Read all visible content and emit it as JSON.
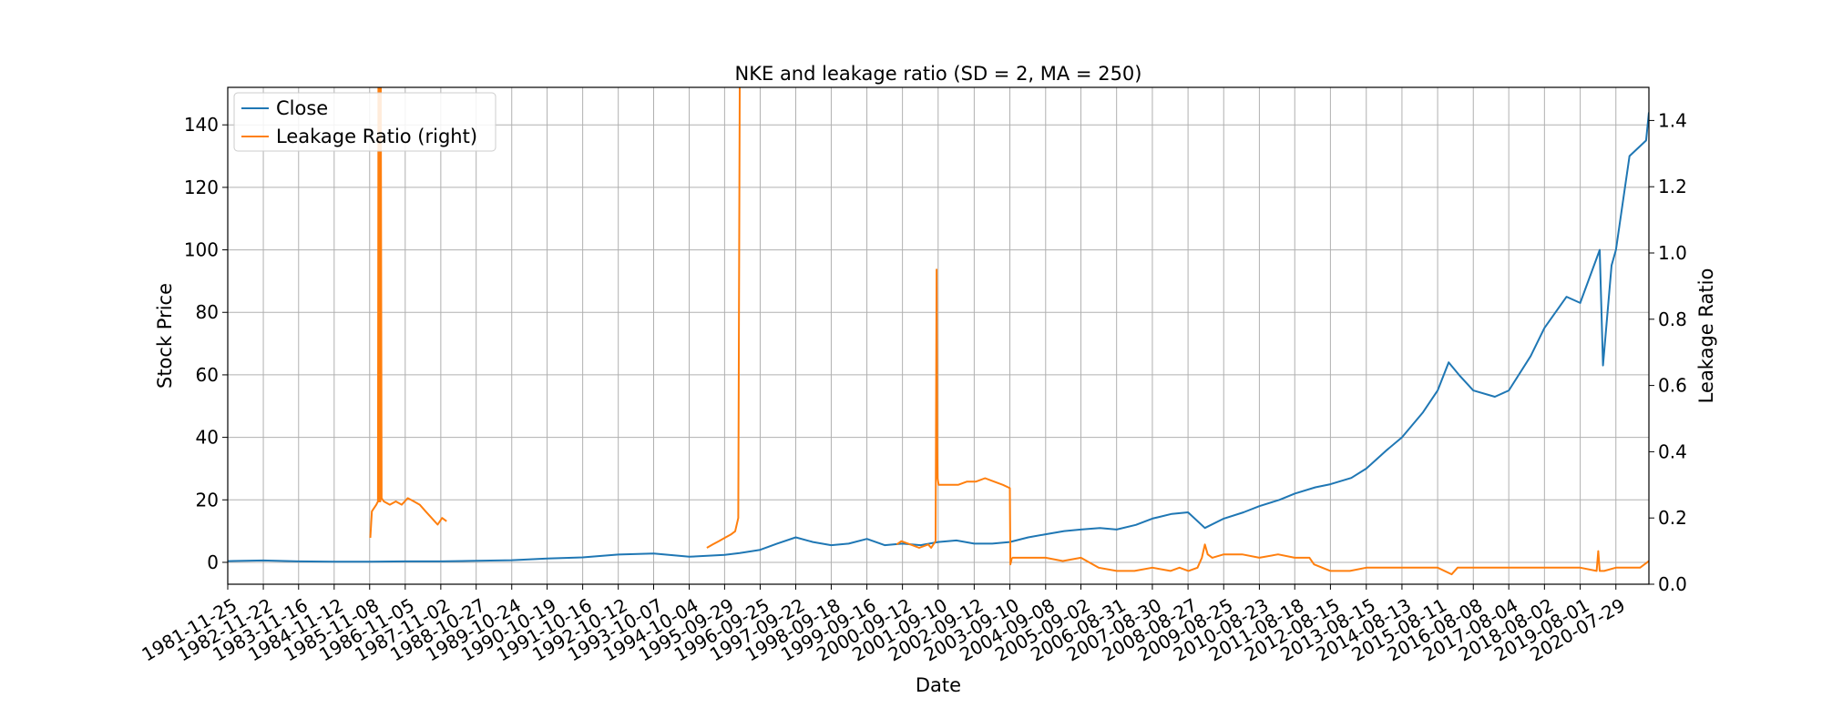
{
  "chart_data": {
    "type": "line",
    "title": "NKE and leakage ratio (SD = 2, MA = 250)",
    "xlabel": "Date",
    "ylabel": "Stock Price",
    "y2label": "Leakage Ratio",
    "xlim": [
      "1981-11-25",
      "2021-06-30"
    ],
    "ylim": [
      -7,
      152
    ],
    "y2lim": [
      0.0,
      1.5
    ],
    "grid": true,
    "legend_position": "top-left",
    "x_tick_labels": [
      "1981-11-25",
      "1982-11-22",
      "1983-11-16",
      "1984-11-12",
      "1985-11-08",
      "1986-11-05",
      "1987-11-02",
      "1988-10-27",
      "1989-10-24",
      "1990-10-19",
      "1991-10-16",
      "1992-10-12",
      "1993-10-07",
      "1994-10-04",
      "1995-09-29",
      "1996-09-25",
      "1997-09-22",
      "1998-09-18",
      "1999-09-16",
      "2000-09-12",
      "2001-09-10",
      "2002-09-12",
      "2003-09-10",
      "2004-09-08",
      "2005-09-02",
      "2006-08-31",
      "2007-08-30",
      "2008-08-27",
      "2009-08-25",
      "2010-08-23",
      "2011-08-18",
      "2012-08-15",
      "2013-08-15",
      "2014-08-13",
      "2015-08-11",
      "2016-08-08",
      "2017-08-04",
      "2018-08-02",
      "2019-08-01",
      "2020-07-29"
    ],
    "y_ticks": [
      0,
      20,
      40,
      60,
      80,
      100,
      120,
      140
    ],
    "y2_ticks": [
      "0.0",
      "0.2",
      "0.4",
      "0.6",
      "0.8",
      "1.0",
      "1.2",
      "1.4"
    ],
    "series": [
      {
        "name": "Close",
        "axis": "left",
        "color": "#1f77b4",
        "x": [
          "1981-11-25",
          "1982-11-22",
          "1983-11-16",
          "1984-11-12",
          "1985-11-08",
          "1986-11-05",
          "1987-11-02",
          "1988-10-27",
          "1989-10-24",
          "1990-10-19",
          "1991-10-16",
          "1992-10-12",
          "1993-10-07",
          "1994-10-04",
          "1995-09-29",
          "1996-03-01",
          "1996-09-25",
          "1997-03-15",
          "1997-09-22",
          "1998-03-15",
          "1998-09-18",
          "1999-03-15",
          "1999-09-16",
          "2000-03-15",
          "2000-09-12",
          "2001-03-15",
          "2001-09-10",
          "2002-03-15",
          "2002-09-12",
          "2003-03-15",
          "2003-09-10",
          "2004-03-15",
          "2004-09-08",
          "2005-03-15",
          "2005-09-02",
          "2006-03-15",
          "2006-08-31",
          "2007-03-15",
          "2007-08-30",
          "2008-03-15",
          "2008-08-27",
          "2009-02-15",
          "2009-08-25",
          "2010-03-15",
          "2010-08-23",
          "2011-03-15",
          "2011-08-18",
          "2012-03-15",
          "2012-08-15",
          "2013-03-15",
          "2013-08-15",
          "2014-03-15",
          "2014-08-13",
          "2015-03-15",
          "2015-08-11",
          "2015-12-01",
          "2016-03-15",
          "2016-08-08",
          "2017-03-15",
          "2017-08-04",
          "2018-03-15",
          "2018-08-02",
          "2019-03-15",
          "2019-08-01",
          "2020-02-15",
          "2020-03-20",
          "2020-06-15",
          "2020-07-29",
          "2020-12-15",
          "2021-06-01",
          "2021-06-30"
        ],
        "values": [
          0.4,
          0.6,
          0.3,
          0.2,
          0.2,
          0.3,
          0.3,
          0.5,
          0.7,
          1.2,
          1.6,
          2.5,
          2.8,
          1.8,
          2.4,
          3.0,
          4.0,
          6.0,
          8.0,
          6.5,
          5.5,
          6.0,
          7.5,
          5.5,
          6.0,
          5.5,
          6.5,
          7.0,
          6.0,
          6.0,
          6.5,
          8.0,
          9.0,
          10.0,
          10.5,
          11.0,
          10.5,
          12.0,
          14.0,
          15.5,
          16.0,
          11.0,
          14.0,
          16.0,
          18.0,
          20.0,
          22.0,
          24.0,
          25.0,
          27.0,
          30.0,
          36.0,
          40.0,
          48.0,
          55.0,
          64.0,
          60.0,
          55.0,
          53.0,
          55.0,
          66.0,
          75.0,
          85.0,
          83.0,
          100.0,
          63.0,
          95.0,
          100.0,
          130.0,
          135.0,
          144.0
        ]
      },
      {
        "name": "Leakage Ratio (right)",
        "axis": "right",
        "color": "#ff7f0e",
        "segments": [
          {
            "x": [
              "1985-11-15",
              "1985-12-01",
              "1986-01-15",
              "1986-02-01",
              "1986-02-05",
              "1986-02-08",
              "1986-02-12",
              "1986-02-15",
              "1986-02-20",
              "1986-02-25",
              "1986-03-01",
              "1986-03-10",
              "1986-04-01",
              "1986-06-01",
              "1986-08-01",
              "1986-10-01",
              "1986-12-01",
              "1987-02-01",
              "1987-04-01",
              "1987-06-01",
              "1987-08-01",
              "1987-10-01",
              "1987-11-15",
              "1987-12-31"
            ],
            "values": [
              0.14,
              0.22,
              0.24,
              0.25,
              1.5,
              0.25,
              1.5,
              0.25,
              1.5,
              0.25,
              1.5,
              0.26,
              0.25,
              0.24,
              0.25,
              0.24,
              0.26,
              0.25,
              0.24,
              0.22,
              0.2,
              0.18,
              0.2,
              0.19
            ]
          },
          {
            "x": [
              "1995-04-01",
              "1995-06-01",
              "1995-08-01",
              "1995-10-01",
              "1995-12-01",
              "1996-01-15",
              "1996-02-15",
              "1996-03-01",
              "1996-03-05"
            ],
            "values": [
              0.11,
              0.12,
              0.13,
              0.14,
              0.15,
              0.16,
              0.2,
              1.5,
              1.5
            ]
          },
          {
            "x": [
              "2000-07-15",
              "2000-09-01",
              "2000-12-01",
              "2001-03-01",
              "2001-06-01",
              "2001-07-01",
              "2001-08-15",
              "2001-08-25",
              "2001-09-01",
              "2001-09-05",
              "2001-09-15",
              "2001-10-01",
              "2002-01-01",
              "2002-04-01",
              "2002-07-01",
              "2002-10-01",
              "2003-01-01",
              "2003-04-01",
              "2003-07-01",
              "2003-09-10",
              "2003-09-15",
              "2003-10-01"
            ],
            "values": [
              0.12,
              0.13,
              0.12,
              0.11,
              0.12,
              0.11,
              0.13,
              0.95,
              0.42,
              0.32,
              0.3,
              0.3,
              0.3,
              0.3,
              0.31,
              0.31,
              0.32,
              0.31,
              0.3,
              0.29,
              0.06,
              0.08
            ]
          },
          {
            "x": [
              "2003-10-01",
              "2004-03-01",
              "2004-09-08",
              "2005-03-01",
              "2005-09-02",
              "2006-03-01",
              "2006-08-31",
              "2007-03-01",
              "2007-08-30",
              "2008-03-01",
              "2008-06-01",
              "2008-09-01",
              "2008-12-01",
              "2009-01-15",
              "2009-02-15",
              "2009-03-15",
              "2009-05-01",
              "2009-08-25",
              "2010-03-01",
              "2010-08-23",
              "2011-03-01",
              "2011-08-18",
              "2012-01-15",
              "2012-03-01",
              "2012-08-15",
              "2013-03-01",
              "2013-08-15",
              "2014-03-01",
              "2014-08-13",
              "2015-03-01",
              "2015-08-11",
              "2016-01-01",
              "2016-03-01",
              "2016-08-08",
              "2017-03-01",
              "2017-08-04",
              "2018-03-01",
              "2018-08-02",
              "2019-03-01",
              "2019-08-01",
              "2020-01-15",
              "2020-02-01",
              "2020-02-15",
              "2020-04-01",
              "2020-07-29",
              "2021-01-01",
              "2021-04-01",
              "2021-06-30"
            ],
            "values": [
              0.08,
              0.08,
              0.08,
              0.07,
              0.08,
              0.05,
              0.04,
              0.04,
              0.05,
              0.04,
              0.05,
              0.04,
              0.05,
              0.08,
              0.12,
              0.09,
              0.08,
              0.09,
              0.09,
              0.08,
              0.09,
              0.08,
              0.08,
              0.06,
              0.04,
              0.04,
              0.05,
              0.05,
              0.05,
              0.05,
              0.05,
              0.03,
              0.05,
              0.05,
              0.05,
              0.05,
              0.05,
              0.05,
              0.05,
              0.05,
              0.04,
              0.1,
              0.04,
              0.04,
              0.05,
              0.05,
              0.05,
              0.07
            ]
          }
        ]
      }
    ]
  }
}
